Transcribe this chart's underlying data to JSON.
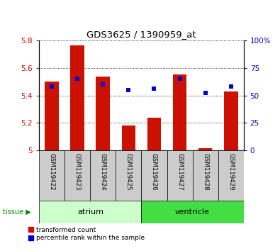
{
  "title": "GDS3625 / 1390959_at",
  "samples": [
    "GSM119422",
    "GSM119423",
    "GSM119424",
    "GSM119425",
    "GSM119426",
    "GSM119427",
    "GSM119428",
    "GSM119429"
  ],
  "red_values": [
    5.5,
    5.76,
    5.535,
    5.18,
    5.24,
    5.55,
    5.02,
    5.43
  ],
  "blue_percentiles": [
    58,
    65,
    60,
    55,
    56,
    65,
    52,
    58
  ],
  "baseline": 5.0,
  "ylim_left": [
    5.0,
    5.8
  ],
  "ylim_right": [
    0,
    100
  ],
  "yticks_left": [
    5.0,
    5.2,
    5.4,
    5.6,
    5.8
  ],
  "ytick_labels_left": [
    "5",
    "5.2",
    "5.4",
    "5.6",
    "5.8"
  ],
  "yticks_right": [
    0,
    25,
    50,
    75,
    100
  ],
  "ytick_labels_right": [
    "0",
    "25",
    "50",
    "75",
    "100%"
  ],
  "bar_color": "#CC1100",
  "dot_color": "#0000CC",
  "atrium_color": "#CCFFCC",
  "ventricle_color": "#44DD44",
  "tissue_label_color": "#008800",
  "left_axis_color": "#CC0000",
  "right_axis_color": "#0000CC",
  "bar_width": 0.55,
  "dot_size": 22,
  "dot_marker": "s"
}
